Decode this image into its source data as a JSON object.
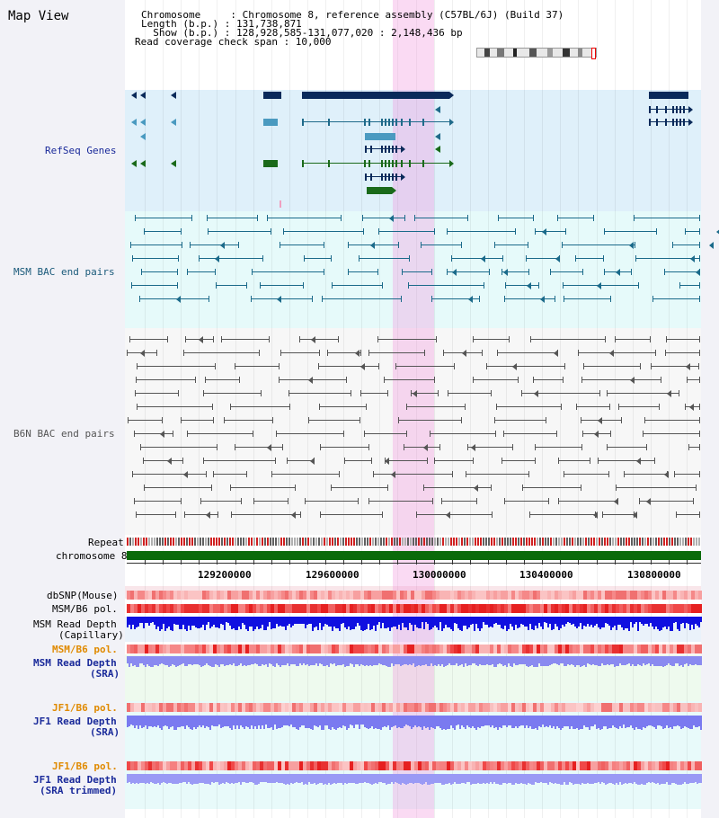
{
  "title": "Map View",
  "header": {
    "line1": "Chromosome     : Chromosome 8, reference assembly (C57BL/6J) (Build 37)",
    "line2": "Length (b.p.) : 131,738,871",
    "line3": "  Show (b.p.) : 128,928,585-131,077,020 : 2,148,436 bp",
    "line4": "Read coverage check span : 10,000"
  },
  "tracks": {
    "refseq": "RefSeq Genes",
    "msm_bac": "MSM BAC end pairs",
    "b6n_bac": "B6N BAC end pairs",
    "repeat": "Repeat",
    "chromosome": "chromosome 8",
    "dbsnp": "dbSNP(Mouse)",
    "msm_b6_pol_1": "MSM/B6 pol.",
    "msm_read_depth_cap_1": "MSM Read Depth",
    "msm_read_depth_cap_2": "(Capillary)",
    "msm_b6_pol_2": "MSM/B6 pol.",
    "msm_read_depth_sra_1": "MSM Read Depth",
    "msm_read_depth_sra_2": "(SRA)",
    "jf1_b6_pol_1": "JF1/B6 pol.",
    "jf1_read_depth_sra_1": "JF1 Read Depth",
    "jf1_read_depth_sra_2": "(SRA)",
    "jf1_b6_pol_2": "JF1/B6 pol.",
    "jf1_read_depth_trim_1": "JF1 Read Depth",
    "jf1_read_depth_trim_2": "(SRA trimmed)"
  },
  "axis": {
    "t1": "129200000",
    "t2": "129600000",
    "t3": "130000000",
    "t4": "130400000",
    "t5": "130800000"
  },
  "colors": {
    "refseq_bg": "#dff0fa",
    "bac_bg": "#e6fafa",
    "gene_dark": "#0a2a5a",
    "gene_mid": "#1f6a8a",
    "gene_green": "#1a6a1a",
    "msm_label": "#1a5a7a",
    "b6n_label": "#555555",
    "orange_label": "#e08a00",
    "blue_label": "#1a2a9a",
    "highlight": "#f096dc"
  }
}
